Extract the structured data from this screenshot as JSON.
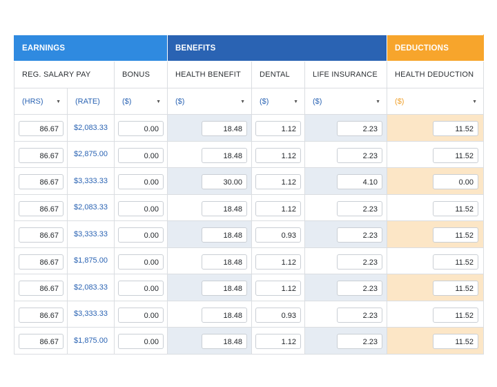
{
  "groups": {
    "earnings": "EARNINGS",
    "benefits": "BENEFITS",
    "deductions": "DEDUCTIONS"
  },
  "columns": {
    "reg_salary_pay": "REG. SALARY PAY",
    "bonus": "BONUS",
    "health_benefit": "HEALTH BENEFIT",
    "dental": "DENTAL",
    "life_insurance": "LIFE INSURANCE",
    "health_deduction": "HEALTH DEDUCTION"
  },
  "units": {
    "hrs": "(HRS)",
    "rate": "(RATE)",
    "bonus": "($)",
    "health_benefit": "($)",
    "dental": "($)",
    "life_insurance": "($)",
    "health_deduction": "($)"
  },
  "icons": {
    "dropdown": "caret-down-icon"
  },
  "colors": {
    "earnings_header": "#2f8ae0",
    "benefits_header": "#2a63b3",
    "deductions_header": "#f7a52c",
    "shaded_benefits": "#e6ecf3",
    "shaded_deductions": "#fce6c6",
    "link_blue": "#2a63b3"
  },
  "rows": [
    {
      "hrs": "86.67",
      "rate": "$2,083.33",
      "bonus": "0.00",
      "health_benefit": "18.48",
      "dental": "1.12",
      "life_insurance": "2.23",
      "health_deduction": "11.52"
    },
    {
      "hrs": "86.67",
      "rate": "$2,875.00",
      "bonus": "0.00",
      "health_benefit": "18.48",
      "dental": "1.12",
      "life_insurance": "2.23",
      "health_deduction": "11.52"
    },
    {
      "hrs": "86.67",
      "rate": "$3,333.33",
      "bonus": "0.00",
      "health_benefit": "30.00",
      "dental": "1.12",
      "life_insurance": "4.10",
      "health_deduction": "0.00"
    },
    {
      "hrs": "86.67",
      "rate": "$2,083.33",
      "bonus": "0.00",
      "health_benefit": "18.48",
      "dental": "1.12",
      "life_insurance": "2.23",
      "health_deduction": "11.52"
    },
    {
      "hrs": "86.67",
      "rate": "$3,333.33",
      "bonus": "0.00",
      "health_benefit": "18.48",
      "dental": "0.93",
      "life_insurance": "2.23",
      "health_deduction": "11.52"
    },
    {
      "hrs": "86.67",
      "rate": "$1,875.00",
      "bonus": "0.00",
      "health_benefit": "18.48",
      "dental": "1.12",
      "life_insurance": "2.23",
      "health_deduction": "11.52"
    },
    {
      "hrs": "86.67",
      "rate": "$2,083.33",
      "bonus": "0.00",
      "health_benefit": "18.48",
      "dental": "1.12",
      "life_insurance": "2.23",
      "health_deduction": "11.52"
    },
    {
      "hrs": "86.67",
      "rate": "$3,333.33",
      "bonus": "0.00",
      "health_benefit": "18.48",
      "dental": "0.93",
      "life_insurance": "2.23",
      "health_deduction": "11.52"
    },
    {
      "hrs": "86.67",
      "rate": "$1,875.00",
      "bonus": "0.00",
      "health_benefit": "18.48",
      "dental": "1.12",
      "life_insurance": "2.23",
      "health_deduction": "11.52"
    }
  ]
}
